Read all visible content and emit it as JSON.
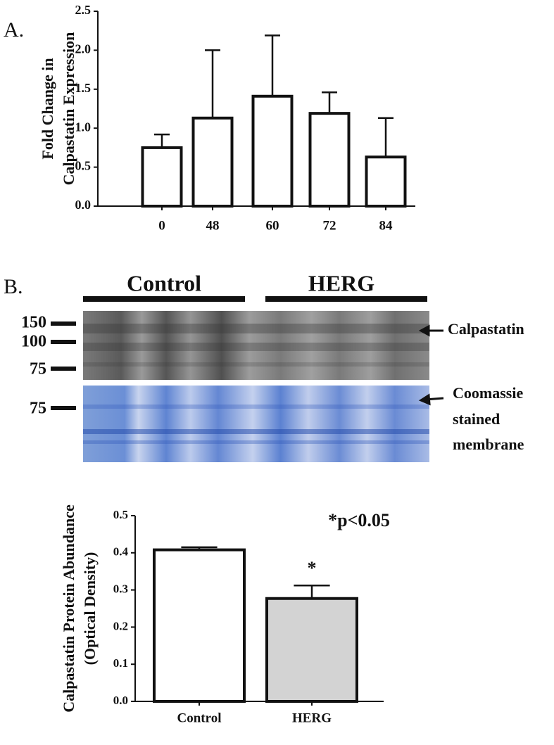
{
  "chart_data": [
    {
      "type": "bar",
      "panel_label": "A.",
      "ylabel": [
        "Fold Change in",
        "Calpastatin Expression"
      ],
      "categories": [
        "0",
        "48",
        "60",
        "72",
        "84"
      ],
      "values": [
        0.75,
        1.13,
        1.41,
        1.19,
        0.63
      ],
      "errors": [
        0.17,
        0.87,
        0.78,
        0.27,
        0.5
      ],
      "colors": [
        "#ffffff",
        "#ffffff",
        "#ffffff",
        "#ffffff",
        "#ffffff"
      ],
      "ylim": [
        0,
        2.5
      ],
      "yticks": [
        {
          "value": 0,
          "label": "0.0"
        },
        0.5,
        {
          "value": 1,
          "label": "1.0"
        },
        1.5,
        {
          "value": 2,
          "label": "2.0"
        },
        2.5
      ]
    },
    {
      "type": "bar",
      "ylabel": [
        "Calpastatin Protein Abundance",
        "(Optical Density)"
      ],
      "categories": [
        "Control",
        "HERG"
      ],
      "values": [
        0.408,
        0.277
      ],
      "errors": [
        0.007,
        0.035
      ],
      "colors": [
        "#ffffff",
        "#d3d3d3"
      ],
      "ylim": [
        0,
        0.5
      ],
      "yticks": [
        {
          "value": 0,
          "label": "0.0"
        },
        0.1,
        0.2,
        0.3,
        0.4,
        0.5
      ],
      "annotation": "*p<0.05",
      "bar_annotations": [
        null,
        "*"
      ]
    }
  ],
  "blot": {
    "panel_label": "B.",
    "groups": [
      "Control",
      "HERG"
    ],
    "markers": [
      "150",
      "100",
      "75",
      "75"
    ],
    "calpastatin_label": "Calpastatin",
    "coomassie_label": [
      "Coomassie",
      "stained",
      "membrane"
    ]
  }
}
